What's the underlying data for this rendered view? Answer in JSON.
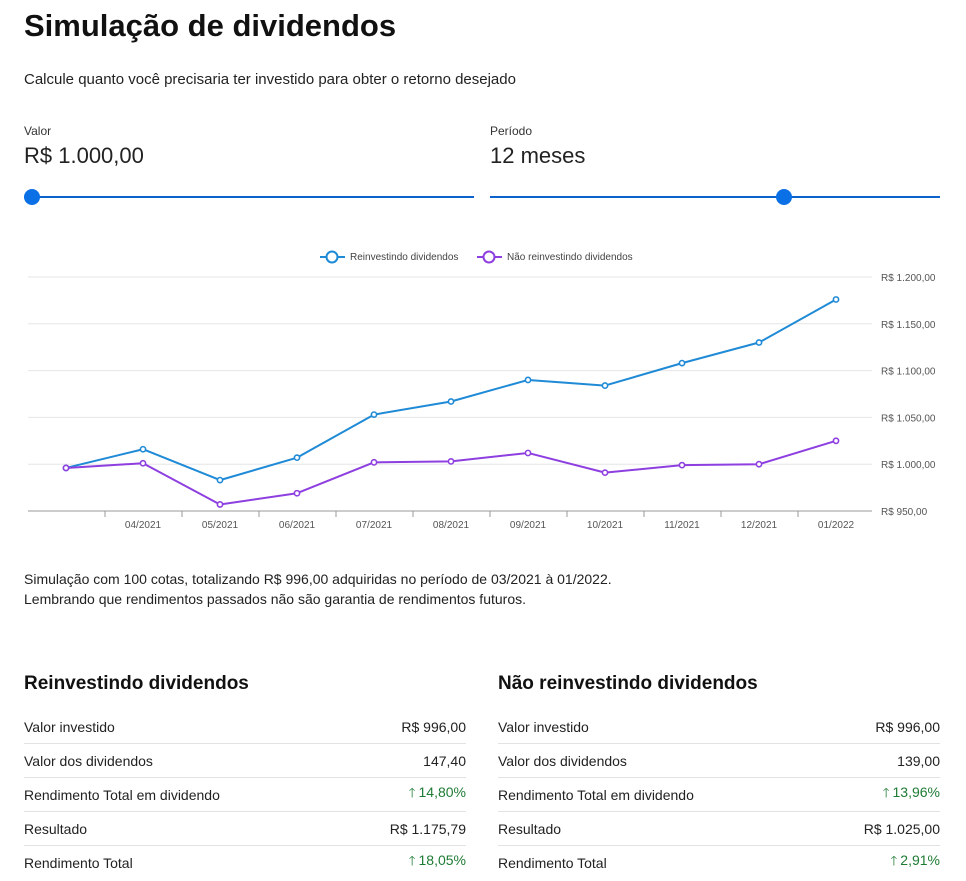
{
  "page": {
    "title": "Simulação de dividendos",
    "subtitle": "Calcule quanto você precisaria ter investido para obter o retorno desejado"
  },
  "inputs": {
    "valor": {
      "label": "Valor",
      "value": "R$ 1.000,00",
      "slider_fraction": 0.0
    },
    "periodo": {
      "label": "Período",
      "value": "12 meses",
      "slider_fraction": 0.66
    }
  },
  "colors": {
    "accent": "#0b6fe6",
    "reinvest": "#1f8ad6",
    "no_reinvest": "#8e3fe0",
    "positive": "#1e7b34"
  },
  "chart_data": {
    "type": "line",
    "categories": [
      "03/2021",
      "04/2021",
      "05/2021",
      "06/2021",
      "07/2021",
      "08/2021",
      "09/2021",
      "10/2021",
      "11/2021",
      "12/2021",
      "01/2022"
    ],
    "x_tick_labels": [
      "04/2021",
      "05/2021",
      "06/2021",
      "07/2021",
      "08/2021",
      "09/2021",
      "10/2021",
      "11/2021",
      "12/2021",
      "01/2022"
    ],
    "y_tick_labels": [
      "R$ 1.200,00",
      "R$ 1.150,00",
      "R$ 1.100,00",
      "R$ 1.050,00",
      "R$ 1.000,00",
      "R$ 950,00"
    ],
    "y_ticks": [
      1200,
      1150,
      1100,
      1050,
      1000,
      950
    ],
    "ylim": [
      950,
      1200
    ],
    "grid": true,
    "legend_position": "top-center",
    "series": [
      {
        "name": "Reinvestindo dividendos",
        "values": [
          996,
          1016,
          983,
          1007,
          1053,
          1067,
          1090,
          1084,
          1108,
          1130,
          1176
        ]
      },
      {
        "name": "Não reinvestindo dividendos",
        "values": [
          996,
          1001,
          957,
          969,
          1002,
          1003,
          1012,
          991,
          999,
          1000,
          1025
        ]
      }
    ]
  },
  "notes": {
    "line1": "Simulação com 100 cotas, totalizando R$ 996,00 adquiridas no período de 03/2021 à 01/2022.",
    "line2": "Lembrando que rendimentos passados não são garantia de rendimentos futuros."
  },
  "reinvest_table": {
    "title": "Reinvestindo dividendos",
    "rows": [
      {
        "label": "Valor investido",
        "value": "R$ 996,00"
      },
      {
        "label": "Valor dos dividendos",
        "value": "147,40"
      },
      {
        "label": "Rendimento Total em dividendo",
        "value": "14,80%"
      },
      {
        "label": "Resultado",
        "value": "R$ 1.175,79"
      },
      {
        "label": "Rendimento Total",
        "value": "18,05%"
      }
    ]
  },
  "no_reinvest_table": {
    "title": "Não reinvestindo dividendos",
    "rows": [
      {
        "label": "Valor investido",
        "value": "R$ 996,00"
      },
      {
        "label": "Valor dos dividendos",
        "value": "139,00"
      },
      {
        "label": "Rendimento Total em dividendo",
        "value": "13,96%"
      },
      {
        "label": "Resultado",
        "value": "R$ 1.025,00"
      },
      {
        "label": "Rendimento Total",
        "value": "2,91%"
      }
    ]
  },
  "icons": {
    "positive_trend": "arrow-up-icon"
  }
}
